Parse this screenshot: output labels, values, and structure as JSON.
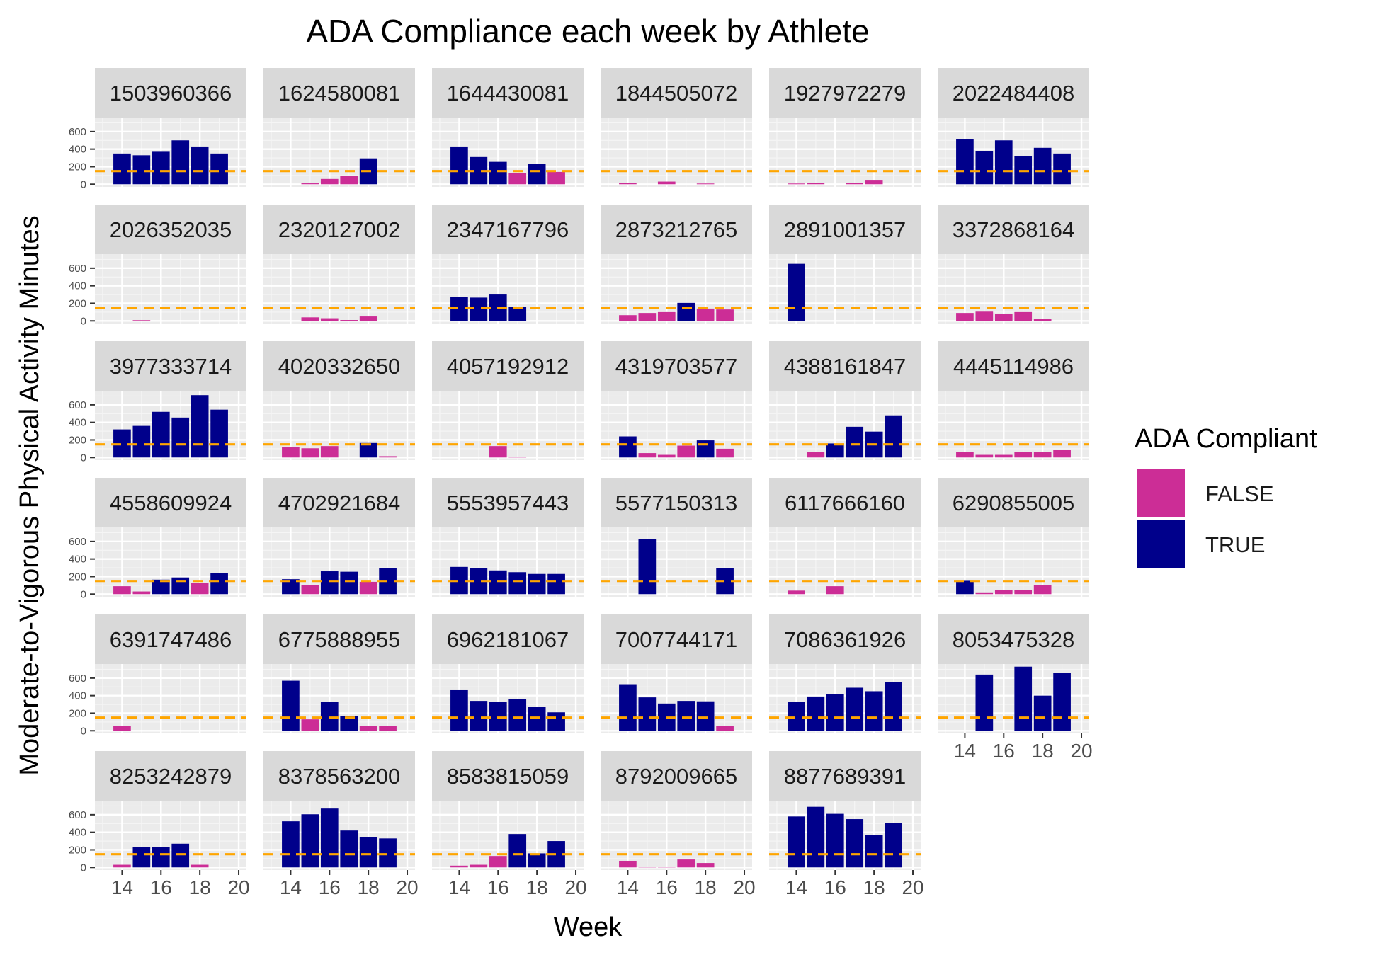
{
  "chart_data": {
    "type": "bar",
    "title": "ADA Compliance each week by Athlete",
    "xlabel": "Week",
    "ylabel": "Moderate-to-Vigorous Physical Activity Minutes",
    "x_ticks": [
      14,
      16,
      18,
      20
    ],
    "y_ticks": [
      0,
      200,
      400,
      600
    ],
    "xlim": [
      12.6,
      20.4
    ],
    "ylim": [
      -30,
      760
    ],
    "reference_line": {
      "y": 150,
      "color": "#FFA500",
      "style": "dashed"
    },
    "legend": {
      "title": "ADA Compliant",
      "placement": "right",
      "entries": [
        {
          "label": "FALSE",
          "color": "#CC2D96"
        },
        {
          "label": "TRUE",
          "color": "#00008B"
        }
      ]
    },
    "grid": true,
    "panels": [
      {
        "athlete": "1503960366",
        "bars": [
          [
            14,
            350
          ],
          [
            15,
            330
          ],
          [
            16,
            370
          ],
          [
            17,
            500
          ],
          [
            18,
            430
          ],
          [
            19,
            350
          ]
        ]
      },
      {
        "athlete": "1624580081",
        "bars": [
          [
            15,
            10
          ],
          [
            16,
            60
          ],
          [
            17,
            95
          ],
          [
            18,
            295
          ]
        ]
      },
      {
        "athlete": "1644430081",
        "bars": [
          [
            14,
            430
          ],
          [
            15,
            310
          ],
          [
            16,
            255
          ],
          [
            17,
            130
          ],
          [
            18,
            235
          ],
          [
            19,
            140
          ]
        ]
      },
      {
        "athlete": "1844505072",
        "bars": [
          [
            14,
            15
          ],
          [
            16,
            30
          ],
          [
            18,
            8
          ]
        ]
      },
      {
        "athlete": "1927972279",
        "bars": [
          [
            14,
            8
          ],
          [
            15,
            15
          ],
          [
            17,
            12
          ],
          [
            18,
            50
          ]
        ]
      },
      {
        "athlete": "2022484408",
        "bars": [
          [
            14,
            510
          ],
          [
            15,
            380
          ],
          [
            16,
            500
          ],
          [
            17,
            320
          ],
          [
            18,
            415
          ],
          [
            19,
            350
          ]
        ]
      },
      {
        "athlete": "2026352035",
        "bars": [
          [
            15,
            8
          ]
        ]
      },
      {
        "athlete": "2320127002",
        "bars": [
          [
            15,
            40
          ],
          [
            16,
            30
          ],
          [
            17,
            10
          ],
          [
            18,
            50
          ]
        ]
      },
      {
        "athlete": "2347167796",
        "bars": [
          [
            14,
            270
          ],
          [
            15,
            265
          ],
          [
            16,
            300
          ],
          [
            17,
            160
          ]
        ]
      },
      {
        "athlete": "2873212765",
        "bars": [
          [
            14,
            65
          ],
          [
            15,
            90
          ],
          [
            16,
            100
          ],
          [
            17,
            205
          ],
          [
            18,
            140
          ],
          [
            19,
            130
          ]
        ]
      },
      {
        "athlete": "2891001357",
        "bars": [
          [
            14,
            650
          ]
        ]
      },
      {
        "athlete": "3372868164",
        "bars": [
          [
            14,
            90
          ],
          [
            15,
            105
          ],
          [
            16,
            80
          ],
          [
            17,
            100
          ],
          [
            18,
            20
          ]
        ]
      },
      {
        "athlete": "3977333714",
        "bars": [
          [
            14,
            320
          ],
          [
            15,
            360
          ],
          [
            16,
            520
          ],
          [
            17,
            455
          ],
          [
            18,
            710
          ],
          [
            19,
            545
          ]
        ]
      },
      {
        "athlete": "4020332650",
        "bars": [
          [
            14,
            115
          ],
          [
            15,
            105
          ],
          [
            16,
            130
          ],
          [
            18,
            165
          ],
          [
            19,
            15
          ]
        ]
      },
      {
        "athlete": "4057192912",
        "bars": [
          [
            16,
            130
          ],
          [
            17,
            10
          ]
        ]
      },
      {
        "athlete": "4319703577",
        "bars": [
          [
            14,
            240
          ],
          [
            15,
            50
          ],
          [
            16,
            30
          ],
          [
            17,
            135
          ],
          [
            18,
            195
          ],
          [
            19,
            100
          ]
        ]
      },
      {
        "athlete": "4388161847",
        "bars": [
          [
            15,
            60
          ],
          [
            16,
            160
          ],
          [
            17,
            350
          ],
          [
            18,
            295
          ],
          [
            19,
            480
          ]
        ]
      },
      {
        "athlete": "4445114986",
        "bars": [
          [
            14,
            60
          ],
          [
            15,
            30
          ],
          [
            16,
            30
          ],
          [
            17,
            60
          ],
          [
            18,
            65
          ],
          [
            19,
            85
          ]
        ]
      },
      {
        "athlete": "4558609924",
        "bars": [
          [
            14,
            90
          ],
          [
            15,
            30
          ],
          [
            16,
            165
          ],
          [
            17,
            190
          ],
          [
            18,
            130
          ],
          [
            19,
            240
          ]
        ]
      },
      {
        "athlete": "4702921684",
        "bars": [
          [
            14,
            170
          ],
          [
            15,
            100
          ],
          [
            16,
            260
          ],
          [
            17,
            255
          ],
          [
            18,
            140
          ],
          [
            19,
            300
          ]
        ]
      },
      {
        "athlete": "5553957443",
        "bars": [
          [
            14,
            310
          ],
          [
            15,
            300
          ],
          [
            16,
            270
          ],
          [
            17,
            250
          ],
          [
            18,
            230
          ],
          [
            19,
            230
          ]
        ]
      },
      {
        "athlete": "5577150313",
        "bars": [
          [
            15,
            630
          ],
          [
            19,
            300
          ]
        ]
      },
      {
        "athlete": "6117666160",
        "bars": [
          [
            14,
            40
          ],
          [
            16,
            90
          ]
        ]
      },
      {
        "athlete": "6290855005",
        "bars": [
          [
            14,
            160
          ],
          [
            15,
            20
          ],
          [
            16,
            45
          ],
          [
            17,
            45
          ],
          [
            18,
            100
          ]
        ]
      },
      {
        "athlete": "6391747486",
        "bars": [
          [
            14,
            55
          ]
        ]
      },
      {
        "athlete": "6775888955",
        "bars": [
          [
            14,
            570
          ],
          [
            15,
            130
          ],
          [
            16,
            330
          ],
          [
            17,
            170
          ],
          [
            18,
            55
          ],
          [
            19,
            55
          ]
        ]
      },
      {
        "athlete": "6962181067",
        "bars": [
          [
            14,
            470
          ],
          [
            15,
            340
          ],
          [
            16,
            330
          ],
          [
            17,
            360
          ],
          [
            18,
            270
          ],
          [
            19,
            210
          ]
        ]
      },
      {
        "athlete": "7007744171",
        "bars": [
          [
            14,
            530
          ],
          [
            15,
            380
          ],
          [
            16,
            310
          ],
          [
            17,
            340
          ],
          [
            18,
            335
          ],
          [
            19,
            55
          ]
        ]
      },
      {
        "athlete": "7086361926",
        "bars": [
          [
            14,
            330
          ],
          [
            15,
            390
          ],
          [
            16,
            420
          ],
          [
            17,
            490
          ],
          [
            18,
            450
          ],
          [
            19,
            555
          ]
        ]
      },
      {
        "athlete": "8053475328",
        "bars": [
          [
            15,
            640
          ],
          [
            17,
            730
          ],
          [
            18,
            400
          ],
          [
            19,
            660
          ]
        ]
      },
      {
        "athlete": "8253242879",
        "bars": [
          [
            14,
            30
          ],
          [
            15,
            235
          ],
          [
            16,
            235
          ],
          [
            17,
            270
          ],
          [
            18,
            30
          ]
        ]
      },
      {
        "athlete": "8378563200",
        "bars": [
          [
            14,
            525
          ],
          [
            15,
            605
          ],
          [
            16,
            670
          ],
          [
            17,
            420
          ],
          [
            18,
            345
          ],
          [
            19,
            330
          ]
        ]
      },
      {
        "athlete": "8583815059",
        "bars": [
          [
            14,
            20
          ],
          [
            15,
            30
          ],
          [
            16,
            130
          ],
          [
            17,
            380
          ],
          [
            18,
            160
          ],
          [
            19,
            300
          ]
        ]
      },
      {
        "athlete": "8792009665",
        "bars": [
          [
            14,
            75
          ],
          [
            15,
            10
          ],
          [
            16,
            10
          ],
          [
            17,
            90
          ],
          [
            18,
            50
          ]
        ]
      },
      {
        "athlete": "8877689391",
        "bars": [
          [
            14,
            580
          ],
          [
            15,
            690
          ],
          [
            16,
            610
          ],
          [
            17,
            550
          ],
          [
            18,
            370
          ],
          [
            19,
            510
          ]
        ]
      }
    ]
  }
}
